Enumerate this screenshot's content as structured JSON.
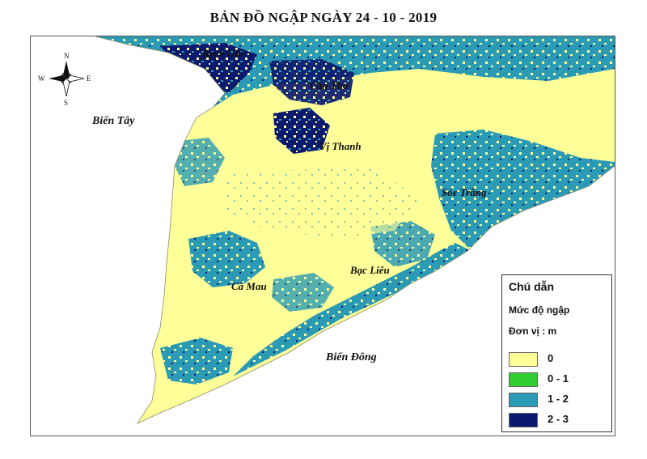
{
  "title": "BẢN ĐỒ NGẬP NGÀY 24 - 10 - 2019",
  "places": {
    "rach_gia": "Rạch Giá",
    "can_tho": "Cần Thơ",
    "vi_thanh": "Vị Thanh",
    "soc_trang": "Sóc Trăng",
    "bac_lieu": "Bạc Liêu",
    "ca_mau": "Cà Mau"
  },
  "seas": {
    "west": "Biển Tây",
    "east": "Biển Đông"
  },
  "compass": {
    "n": "N",
    "s": "S",
    "e": "E",
    "w": "W"
  },
  "legend": {
    "title": "Chú dẫn",
    "subtitle": "Mức độ ngập",
    "unit": "Đơn vị : m",
    "items": [
      {
        "label": "0",
        "color": "#ffff99"
      },
      {
        "label": "0 - 1",
        "color": "#33cc33"
      },
      {
        "label": "1 - 2",
        "color": "#2b9bb5"
      },
      {
        "label": "2 - 3",
        "color": "#0b1a6e"
      }
    ]
  }
}
